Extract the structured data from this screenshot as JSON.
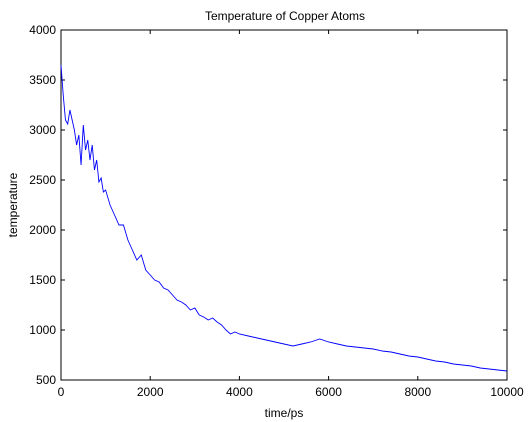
{
  "chart_data": {
    "type": "line",
    "title": "Temperature of Copper Atoms",
    "xlabel": "time/ps",
    "ylabel": "temperature",
    "xlim": [
      0,
      10000
    ],
    "ylim": [
      500,
      4000
    ],
    "xticks": [
      0,
      2000,
      4000,
      6000,
      8000,
      10000
    ],
    "yticks": [
      500,
      1000,
      1500,
      2000,
      2500,
      3000,
      3500,
      4000
    ],
    "grid": false,
    "series": [
      {
        "color": "#0000ff",
        "x": [
          0,
          50,
          100,
          150,
          200,
          250,
          300,
          350,
          400,
          450,
          500,
          550,
          600,
          650,
          700,
          750,
          800,
          850,
          900,
          950,
          1000,
          1100,
          1200,
          1300,
          1400,
          1500,
          1600,
          1700,
          1800,
          1900,
          2000,
          2100,
          2200,
          2300,
          2400,
          2500,
          2600,
          2700,
          2800,
          2900,
          3000,
          3100,
          3200,
          3300,
          3400,
          3500,
          3600,
          3700,
          3800,
          3900,
          4000,
          4200,
          4400,
          4600,
          4800,
          5000,
          5200,
          5400,
          5600,
          5800,
          6000,
          6200,
          6400,
          6600,
          6800,
          7000,
          7200,
          7400,
          7600,
          7800,
          8000,
          8200,
          8400,
          8600,
          8800,
          9000,
          9200,
          9400,
          9600,
          9800,
          10000
        ],
        "values": [
          3650,
          3350,
          3100,
          3060,
          3200,
          3100,
          3000,
          2850,
          2950,
          2650,
          3050,
          2800,
          2900,
          2700,
          2850,
          2600,
          2700,
          2480,
          2520,
          2380,
          2400,
          2250,
          2150,
          2050,
          2050,
          1900,
          1800,
          1700,
          1750,
          1600,
          1550,
          1500,
          1480,
          1420,
          1400,
          1350,
          1300,
          1280,
          1250,
          1200,
          1220,
          1150,
          1130,
          1100,
          1120,
          1080,
          1050,
          1000,
          960,
          980,
          960,
          940,
          920,
          900,
          880,
          860,
          840,
          860,
          880,
          910,
          880,
          860,
          840,
          830,
          820,
          810,
          790,
          780,
          760,
          740,
          730,
          710,
          690,
          680,
          660,
          650,
          640,
          620,
          610,
          600,
          590
        ]
      }
    ]
  }
}
